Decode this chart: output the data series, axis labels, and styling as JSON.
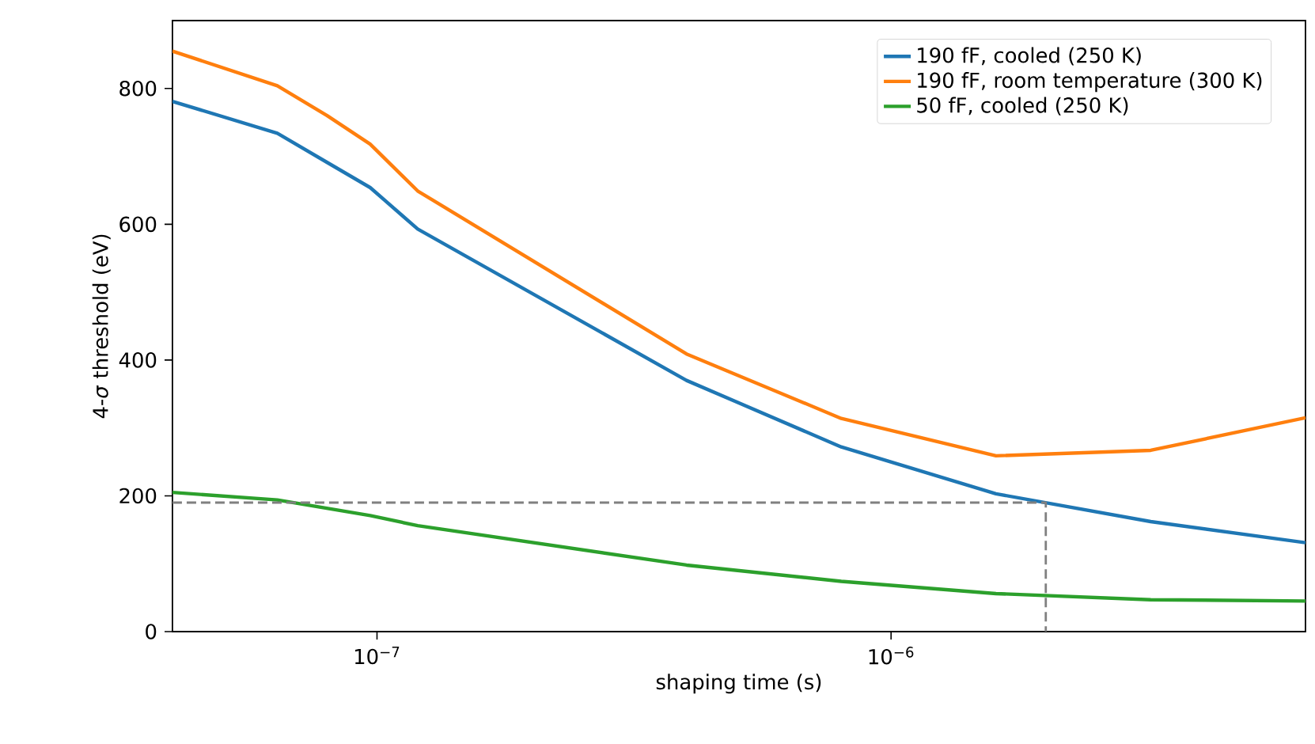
{
  "chart_data": {
    "type": "line",
    "xlabel": "shaping time (s)",
    "ylabel": "4-*σ* threshold (eV)",
    "log": "x",
    "legend": "top right",
    "xlim": [
      4e-08,
      6.4e-06
    ],
    "xticks": [
      {
        "value": 1e-07,
        "label": "10$^{−7}$"
      },
      {
        "value": 1e-06,
        "label": "10$^{−6}$"
      }
    ],
    "ylim": [
      0,
      900
    ],
    "yticks": [
      0,
      200,
      400,
      600,
      800
    ],
    "series": [
      {
        "name": "190 fF, cooled (250 K)",
        "color": "#1f77b4",
        "x": [
          4e-08,
          6.4e-08,
          8e-08,
          9.7e-08,
          1.2e-07,
          4e-07,
          8e-07,
          1.6e-06,
          3.2e-06,
          6.4e-06
        ],
        "values": [
          781,
          734,
          691,
          654,
          593,
          370,
          272,
          203,
          162,
          131
        ]
      },
      {
        "name": "190 fF, room temperature (300 K)",
        "color": "#ff7f0e",
        "x": [
          4e-08,
          6.4e-08,
          8e-08,
          9.7e-08,
          1.2e-07,
          4e-07,
          8e-07,
          1.6e-06,
          3.2e-06,
          6.4e-06
        ],
        "values": [
          855,
          804,
          760,
          718,
          649,
          409,
          314,
          259,
          267,
          315
        ]
      },
      {
        "name": "50 fF, cooled (250 K)",
        "color": "#2ca02c",
        "x": [
          4e-08,
          6.4e-08,
          9.7e-08,
          1.2e-07,
          4e-07,
          8e-07,
          1.6e-06,
          3.2e-06,
          6.4e-06
        ],
        "values": [
          205,
          194,
          171,
          156,
          98,
          74,
          56,
          47,
          45
        ]
      },
      {
        "type": "line",
        "color": "#808080",
        "line_style": "dashed",
        "x": [
          4e-08,
          2e-06,
          2e-06
        ],
        "values": [
          190,
          190,
          0
        ]
      }
    ]
  }
}
